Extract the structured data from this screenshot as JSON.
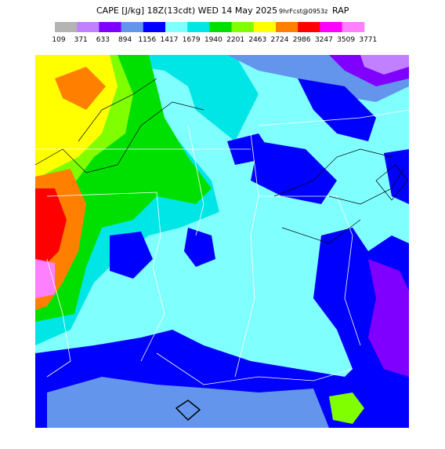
{
  "header": {
    "title": "CAPE [J/kg] 18Z(13cdt) WED 14 May 2025",
    "forecast": "9hrFcst@0953z",
    "model": "RAP"
  },
  "colorbar": {
    "colors": [
      "#b4b4b4",
      "#c080ff",
      "#8000ff",
      "#6495ed",
      "#0000ff",
      "#80ffff",
      "#00e6e6",
      "#00e000",
      "#80ff00",
      "#ffff00",
      "#ff8000",
      "#ff0000",
      "#ff00ff",
      "#ff80ff"
    ],
    "labels": [
      109,
      371,
      633,
      894,
      1156,
      1417,
      1679,
      1940,
      2201,
      2463,
      2724,
      2986,
      3247,
      3509,
      3771
    ]
  }
}
